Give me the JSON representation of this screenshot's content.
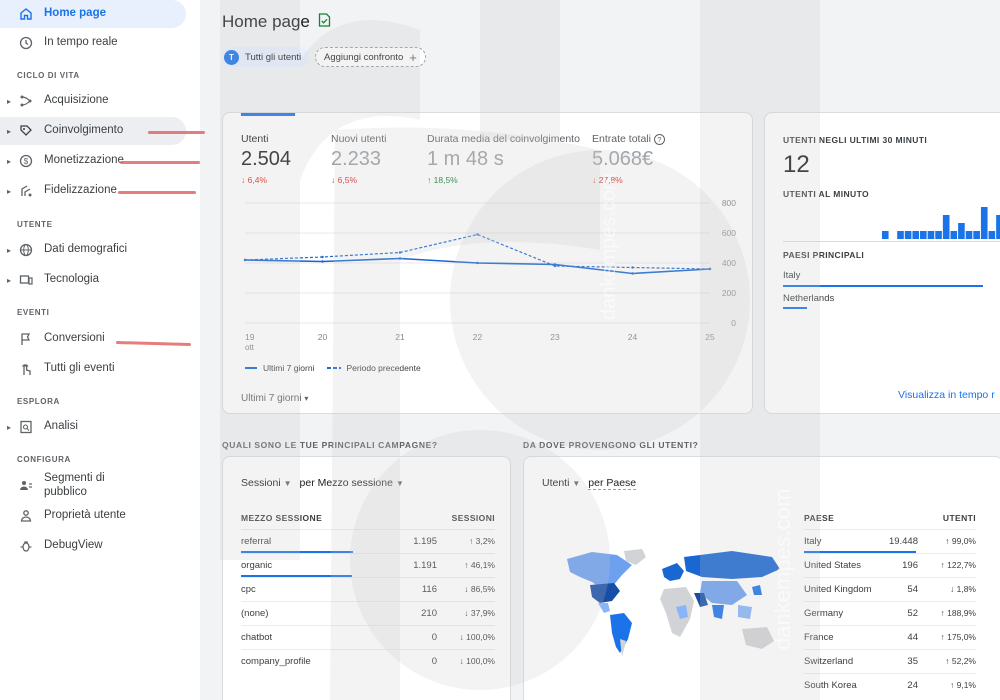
{
  "sidebar": {
    "top_items": [
      {
        "label": "Home page",
        "icon": "home-icon"
      },
      {
        "label": "In tempo reale",
        "icon": "clock-icon"
      }
    ],
    "sections": {
      "lifecycle": "CICLO DI VITA",
      "user": "UTENTE",
      "events": "EVENTI",
      "explore": "ESPLORA",
      "configure": "CONFIGURA"
    },
    "lifecycle_items": [
      {
        "label": "Acquisizione",
        "icon": "acquisition-icon"
      },
      {
        "label": "Coinvolgimento",
        "icon": "engagement-icon"
      },
      {
        "label": "Monetizzazione",
        "icon": "monetization-icon"
      },
      {
        "label": "Fidelizzazione",
        "icon": "retention-icon"
      }
    ],
    "user_items": [
      {
        "label": "Dati demografici",
        "icon": "globe-icon"
      },
      {
        "label": "Tecnologia",
        "icon": "devices-icon"
      }
    ],
    "event_items": [
      {
        "label": "Conversioni",
        "icon": "flag-icon"
      },
      {
        "label": "Tutti gli eventi",
        "icon": "touch-icon"
      }
    ],
    "explore_items": [
      {
        "label": "Analisi",
        "icon": "analysis-icon"
      }
    ],
    "configure_items": [
      {
        "label": "Segmenti di pubblico",
        "icon": "audience-icon"
      },
      {
        "label": "Proprietà utente",
        "icon": "user-property-icon"
      },
      {
        "label": "DebugView",
        "icon": "bug-icon"
      }
    ]
  },
  "header": {
    "title": "Home page",
    "chip_user_initial": "T",
    "chip_user": "Tutti gli utenti",
    "chip_add": "Aggiungi confronto"
  },
  "metrics": [
    {
      "label": "Utenti",
      "value": "2.504",
      "delta": "6,4%",
      "dir": "down"
    },
    {
      "label": "Nuovi utenti",
      "value": "2.233",
      "delta": "6,5%",
      "dir": "down"
    },
    {
      "label": "Durata media del coinvolgimento",
      "value": "1 m 48 s",
      "delta": "18,5%",
      "dir": "up"
    },
    {
      "label": "Entrate totali",
      "value": "5.068€",
      "delta": "27,8%",
      "dir": "down"
    }
  ],
  "chart_data": {
    "type": "line",
    "x": [
      "19",
      "20",
      "21",
      "22",
      "23",
      "24",
      "25"
    ],
    "x_sublabel": "ott",
    "y_ticks": [
      "800",
      "600",
      "400",
      "200",
      "0"
    ],
    "ylim": [
      0,
      800
    ],
    "series": [
      {
        "name": "Ultimi 7 giorni",
        "style": "solid",
        "color": "#1967d2",
        "values": [
          420,
          410,
          430,
          400,
          390,
          330,
          360
        ]
      },
      {
        "name": "Periodo precedente",
        "style": "dashed",
        "color": "#1967d2",
        "values": [
          420,
          440,
          470,
          590,
          380,
          370,
          360
        ]
      }
    ],
    "grid": true,
    "legend": "bottom-left"
  },
  "overview_footer": "Ultimi 7 giorni",
  "realtime": {
    "title": "UTENTI NEGLI ULTIMI 30 MINUTI",
    "value": "12",
    "per_minute": "UTENTI AL MINUTO",
    "bars": [
      0,
      0,
      0,
      0,
      0,
      0,
      0,
      0,
      0,
      0,
      0,
      0,
      0,
      1,
      0,
      1,
      1,
      1,
      1,
      1,
      1,
      3,
      1,
      2,
      1,
      1,
      4,
      1,
      3,
      2,
      2
    ],
    "countries_title": "PAESI PRINCIPALI",
    "countries": [
      {
        "name": "Italy",
        "share": 1.0
      },
      {
        "name": "Netherlands",
        "share": 0.12
      }
    ],
    "link": "Visualizza in tempo r"
  },
  "campaigns": {
    "question": "QUALI SONO LE TUE PRINCIPALI CAMPAGNE?",
    "metric_dd": "Sessioni",
    "dim_dd": "per Mezzo sessione",
    "col_dim": "MEZZO SESSIONE",
    "col_metric": "SESSIONI",
    "rows": [
      {
        "name": "referral",
        "value": "1.195",
        "delta": "3,2%",
        "dir": "up",
        "share": 1.0
      },
      {
        "name": "organic",
        "value": "1.191",
        "delta": "46,1%",
        "dir": "up",
        "share": 0.99
      },
      {
        "name": "cpc",
        "value": "116",
        "delta": "86,5%",
        "dir": "down",
        "share": 0
      },
      {
        "name": "(none)",
        "value": "210",
        "delta": "37,9%",
        "dir": "down",
        "share": 0
      },
      {
        "name": "chatbot",
        "value": "0",
        "delta": "100,0%",
        "dir": "down",
        "share": 0
      },
      {
        "name": "company_profile",
        "value": "0",
        "delta": "100,0%",
        "dir": "down",
        "share": 0
      }
    ]
  },
  "geo": {
    "question": "DA DOVE PROVENGONO GLI UTENTI?",
    "metric_dd": "Utenti",
    "dim_dd": "per Paese",
    "col_dim": "PAESE",
    "col_metric": "UTENTI",
    "rows": [
      {
        "name": "Italy",
        "value": "19.448",
        "delta": "99,0%",
        "dir": "up",
        "share": 1.0
      },
      {
        "name": "United States",
        "value": "196",
        "delta": "122,7%",
        "dir": "up",
        "share": 0
      },
      {
        "name": "United Kingdom",
        "value": "54",
        "delta": "1,8%",
        "dir": "down",
        "share": 0
      },
      {
        "name": "Germany",
        "value": "52",
        "delta": "188,9%",
        "dir": "up",
        "share": 0
      },
      {
        "name": "France",
        "value": "44",
        "delta": "175,0%",
        "dir": "up",
        "share": 0
      },
      {
        "name": "Switzerland",
        "value": "35",
        "delta": "52,2%",
        "dir": "up",
        "share": 0
      },
      {
        "name": "South Korea",
        "value": "24",
        "delta": "9,1%",
        "dir": "up",
        "share": 0
      }
    ]
  },
  "watermark": "dankempes.com",
  "colors": {
    "accent": "#1a73e8",
    "down": "#d93025",
    "up": "#188038",
    "annotation": "#e06666"
  }
}
